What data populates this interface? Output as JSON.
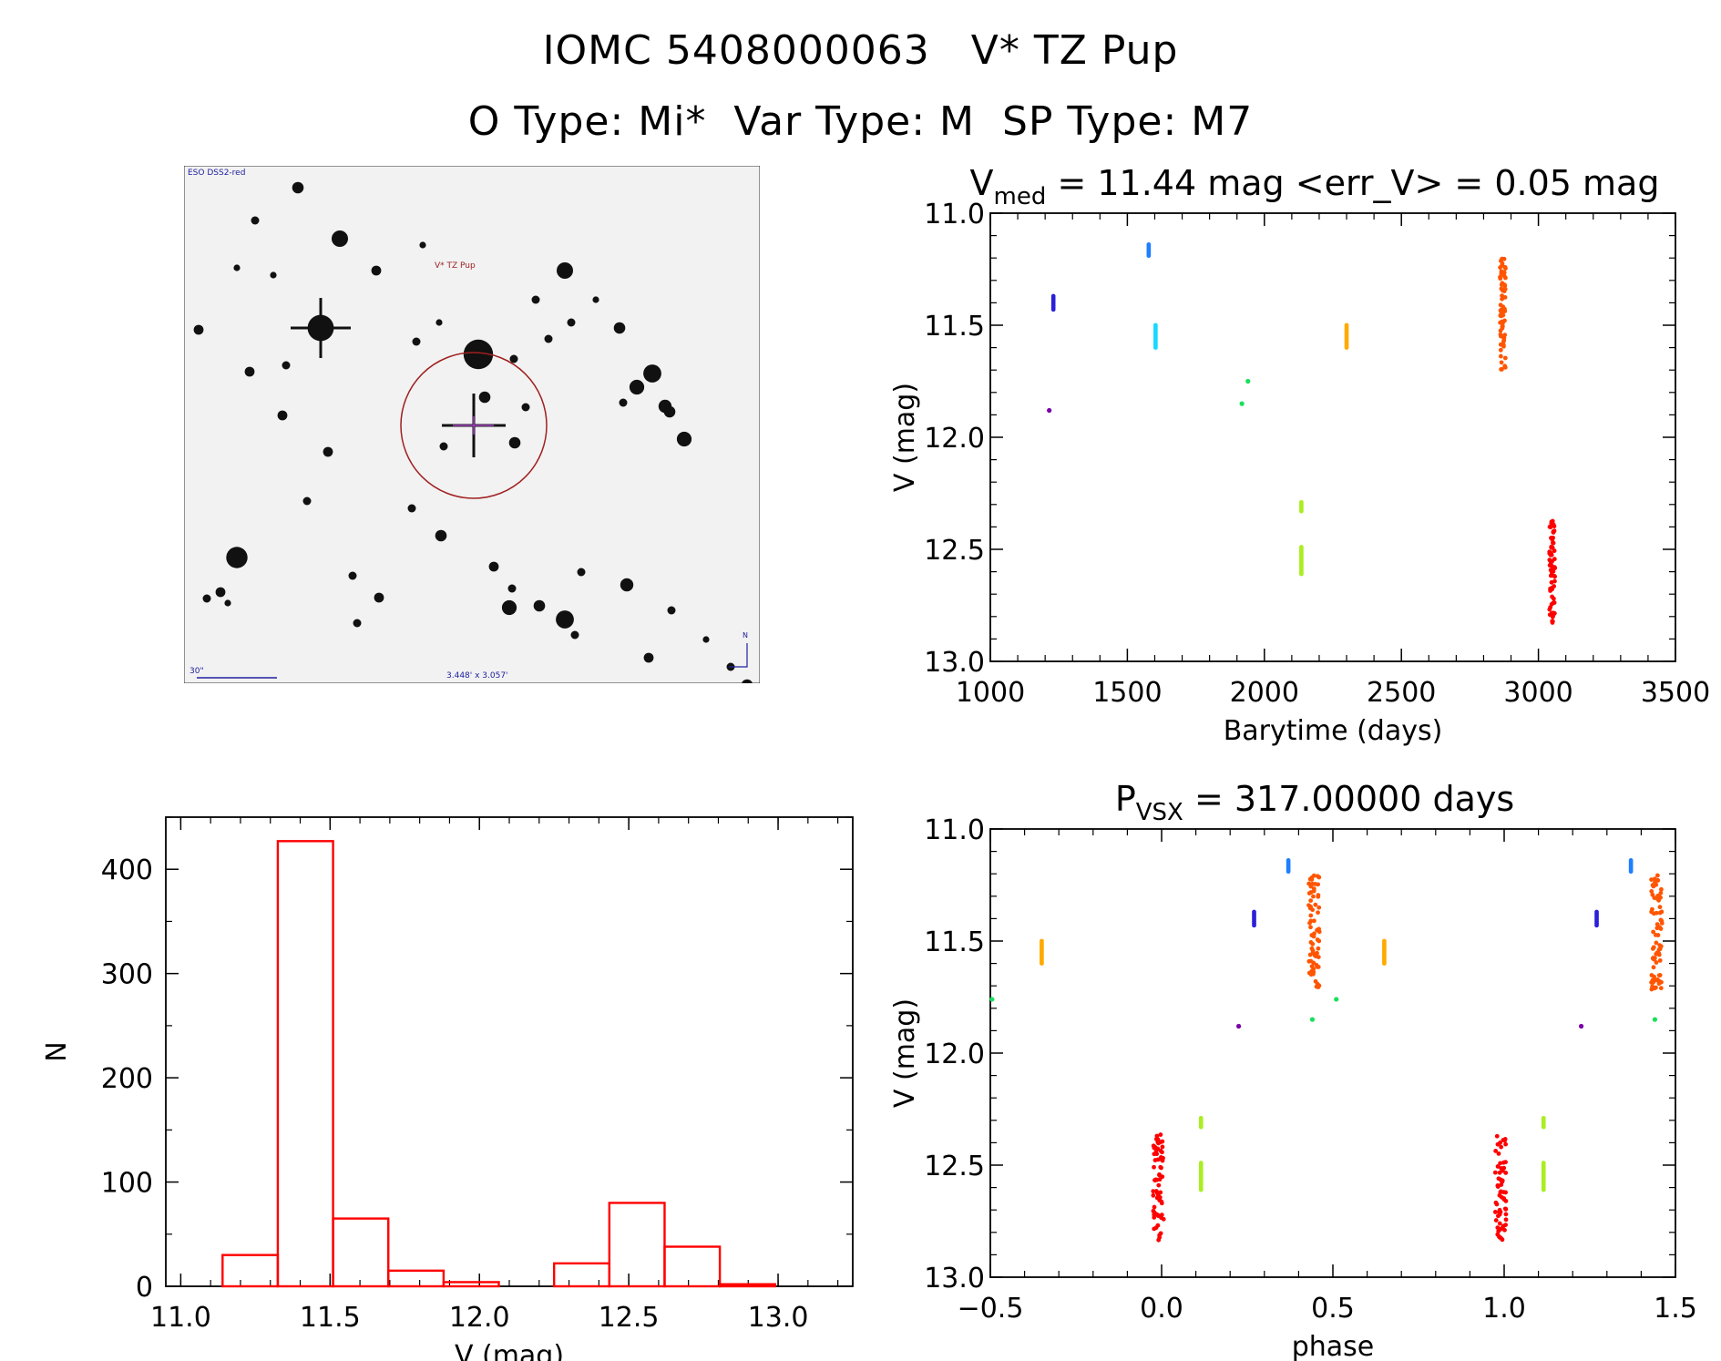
{
  "header": {
    "title": "IOMC 5408000063   V* TZ Pup",
    "subtitle": "O Type: Mi*  Var Type: M  SP Type: M7"
  },
  "finder": {
    "survey_label": "ESO DSS2-red",
    "target_label": "V* TZ Pup",
    "scale_label": "30\"",
    "fov_label": "3.448' x 3.057'",
    "north_label": "N"
  },
  "colors": {
    "hist": "#ff0000",
    "epochs": [
      "#7a00a8",
      "#2b20d8",
      "#1f7fff",
      "#18d8ff",
      "#18e05a",
      "#aaee22",
      "#ffaa00",
      "#ff5500",
      "#ff0000"
    ]
  },
  "chart_data": [
    {
      "type": "scatter",
      "title_main": "V",
      "title_sub": "med",
      "title_rest": " = 11.44 mag <err_V> = 0.05 mag",
      "xlabel": "Barytime (days)",
      "ylabel": "V (mag)",
      "xlim": [
        1000,
        3500
      ],
      "ylim": [
        13.0,
        11.0
      ],
      "xticks": [
        "1000",
        "1500",
        "2000",
        "2500",
        "3000",
        "3500"
      ],
      "yticks": [
        "11.0",
        "11.5",
        "12.0",
        "12.5",
        "13.0"
      ],
      "series": [
        {
          "color_index": 0,
          "points": [
            [
              1215,
              11.88
            ]
          ]
        },
        {
          "color_index": 1,
          "x": 1230,
          "y_min": 11.37,
          "y_max": 11.43
        },
        {
          "color_index": 2,
          "x": 1578,
          "y_min": 11.14,
          "y_max": 11.19
        },
        {
          "color_index": 3,
          "x": 1603,
          "y_min": 11.5,
          "y_max": 11.6
        },
        {
          "color_index": 4,
          "points": [
            [
              1918,
              11.85
            ],
            [
              1940,
              11.75
            ]
          ]
        },
        {
          "color_index": 5,
          "x": 2135,
          "y_min": 12.29,
          "y_max": 12.33
        },
        {
          "color_index": 5,
          "x": 2135,
          "y_min": 12.49,
          "y_max": 12.61
        },
        {
          "color_index": 6,
          "x": 2300,
          "y_min": 11.5,
          "y_max": 11.6
        },
        {
          "color_index": 7,
          "x": 2870,
          "y_min": 11.2,
          "y_max": 11.72
        },
        {
          "color_index": 8,
          "x": 3050,
          "y_min": 12.36,
          "y_max": 12.84
        }
      ]
    },
    {
      "type": "bar",
      "xlabel": "V (mag)",
      "ylabel": "N",
      "xlim": [
        10.95,
        13.25
      ],
      "ylim": [
        0,
        450
      ],
      "xticks": [
        "11.0",
        "11.5",
        "12.0",
        "12.5",
        "13.0"
      ],
      "yticks": [
        "0",
        "100",
        "200",
        "300",
        "400"
      ],
      "bin_edges": [
        11.14,
        11.325,
        11.51,
        11.695,
        11.88,
        12.065,
        12.25,
        12.435,
        12.62,
        12.805,
        12.99
      ],
      "values": [
        30,
        427,
        65,
        15,
        4,
        0,
        22,
        80,
        38,
        2
      ]
    },
    {
      "type": "scatter",
      "title_main": "P",
      "title_sub": "VSX",
      "title_rest": " = 317.00000 days",
      "xlabel": "phase",
      "ylabel": "V (mag)",
      "xlim": [
        -0.5,
        1.5
      ],
      "ylim": [
        13.0,
        11.0
      ],
      "xticks": [
        "−0.5",
        "0.0",
        "0.5",
        "1.0",
        "1.5"
      ],
      "yticks": [
        "11.0",
        "11.5",
        "12.0",
        "12.5",
        "13.0"
      ],
      "series": [
        {
          "color_index": 0,
          "points": [
            [
              0.225,
              11.88
            ]
          ]
        },
        {
          "color_index": 1,
          "x": 0.27,
          "y_min": 11.37,
          "y_max": 11.43
        },
        {
          "color_index": 2,
          "x": 0.37,
          "y_min": 11.14,
          "y_max": 11.19
        },
        {
          "color_index": 3,
          "points": []
        },
        {
          "color_index": 4,
          "points": [
            [
              0.44,
              11.85
            ],
            [
              0.51,
              11.76
            ],
            [
              -0.495,
              11.76
            ]
          ]
        },
        {
          "color_index": 5,
          "x": 0.115,
          "y_min": 12.29,
          "y_max": 12.33
        },
        {
          "color_index": 5,
          "x": 0.115,
          "y_min": 12.49,
          "y_max": 12.61
        },
        {
          "color_index": 6,
          "x": -0.35,
          "y_min": 11.5,
          "y_max": 11.6
        },
        {
          "color_index": 6,
          "x": 0.65,
          "y_min": 11.5,
          "y_max": 11.6
        },
        {
          "color_index": 7,
          "x": 0.445,
          "y_min": 11.2,
          "y_max": 11.72
        },
        {
          "color_index": 8,
          "x": -0.01,
          "y_min": 12.36,
          "y_max": 12.84
        },
        {
          "color_index": 0,
          "points": [
            [
              1.225,
              11.88
            ]
          ]
        },
        {
          "color_index": 1,
          "x": 1.27,
          "y_min": 11.37,
          "y_max": 11.43
        },
        {
          "color_index": 2,
          "x": 1.37,
          "y_min": 11.14,
          "y_max": 11.19
        },
        {
          "color_index": 4,
          "points": [
            [
              1.44,
              11.85
            ]
          ]
        },
        {
          "color_index": 5,
          "x": 1.115,
          "y_min": 12.29,
          "y_max": 12.33
        },
        {
          "color_index": 5,
          "x": 1.115,
          "y_min": 12.49,
          "y_max": 12.61
        },
        {
          "color_index": 7,
          "x": 1.445,
          "y_min": 11.2,
          "y_max": 11.72
        },
        {
          "color_index": 8,
          "x": 0.99,
          "y_min": 12.36,
          "y_max": 12.84
        }
      ]
    }
  ]
}
